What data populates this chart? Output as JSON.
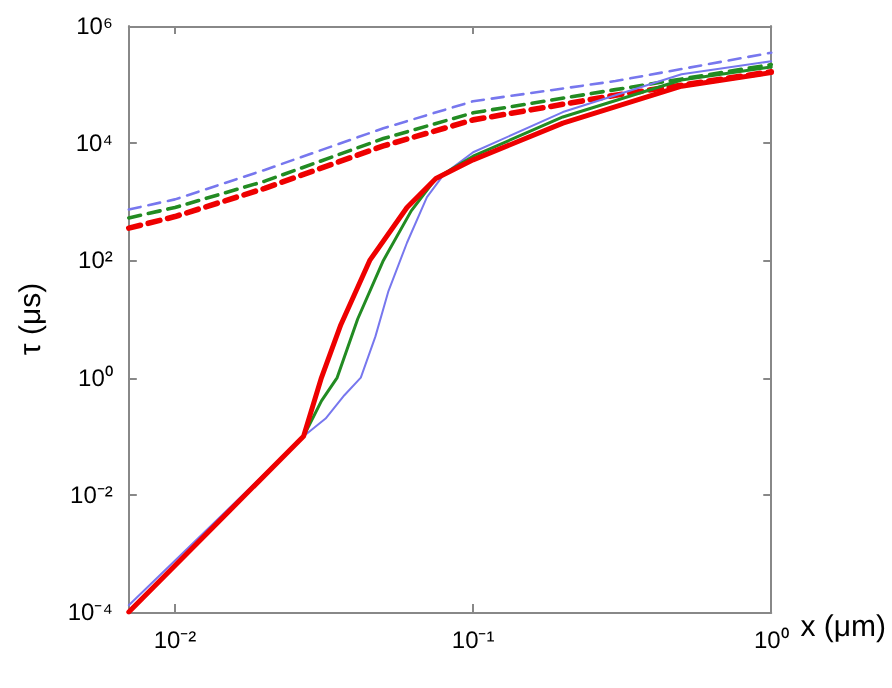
{
  "chart_data": {
    "type": "line",
    "xlabel": "x (μm)",
    "ylabel": "τ (μs)",
    "log": "xy",
    "grid": false,
    "marker": "none",
    "xlim": [
      0.007,
      1
    ],
    "xticks": [
      {
        "value": 0.01,
        "label": "10⁻²"
      },
      {
        "value": 0.1,
        "label": "10⁻¹"
      },
      {
        "value": 1,
        "label": "10⁰"
      }
    ],
    "ylim": [
      0.0001,
      1000000
    ],
    "yticks": [
      {
        "value": 0.0001,
        "label": "10⁻⁴"
      },
      {
        "value": 0.01,
        "label": "10⁻²"
      },
      {
        "value": 1,
        "label": "10⁰"
      },
      {
        "value": 100,
        "label": "10²"
      },
      {
        "value": 10000,
        "label": "10⁴"
      },
      {
        "value": 1000000,
        "label": "10⁶"
      }
    ],
    "series": [
      {
        "color": "#7777ee",
        "line_style": "dashed",
        "x": [
          0.007,
          0.01,
          0.02,
          0.05,
          0.1,
          0.3,
          1
        ],
        "values": [
          740,
          1100,
          3500,
          18000,
          52000,
          115000,
          350000
        ]
      },
      {
        "color": "#228b22",
        "line_style": "dashed",
        "x": [
          0.007,
          0.01,
          0.02,
          0.05,
          0.1,
          0.3,
          1
        ],
        "values": [
          530,
          800,
          2250,
          12000,
          33000,
          82000,
          220000
        ]
      },
      {
        "color": "#ee0000",
        "line_style": "dashed",
        "x": [
          0.007,
          0.01,
          0.02,
          0.05,
          0.1,
          0.3,
          1
        ],
        "values": [
          355,
          560,
          1700,
          9000,
          25000,
          66000,
          166000
        ]
      },
      {
        "color": "#7777ee",
        "line_style": "solid",
        "x": [
          0.007,
          0.027,
          0.032,
          0.037,
          0.042,
          0.047,
          0.052,
          0.06,
          0.07,
          0.08,
          0.1,
          0.2,
          0.5,
          1
        ],
        "values": [
          0.00013,
          0.1,
          0.2,
          0.5,
          1,
          5,
          30,
          200,
          1200,
          3000,
          7000,
          34000,
          150000,
          250000
        ]
      },
      {
        "color": "#228b22",
        "line_style": "solid",
        "x": [
          0.007,
          0.027,
          0.031,
          0.035,
          0.041,
          0.05,
          0.062,
          0.075,
          0.1,
          0.2,
          0.5,
          1
        ],
        "values": [
          0.0001,
          0.1,
          0.4,
          1,
          10,
          100,
          700,
          2500,
          6000,
          28000,
          120000,
          200000
        ]
      },
      {
        "color": "#ee0000",
        "line_style": "solid",
        "x": [
          0.007,
          0.027,
          0.031,
          0.036,
          0.045,
          0.06,
          0.075,
          0.1,
          0.2,
          0.5,
          1
        ],
        "values": [
          0.0001,
          0.1,
          1,
          8,
          100,
          800,
          2500,
          5200,
          22000,
          94000,
          160000
        ]
      }
    ]
  }
}
